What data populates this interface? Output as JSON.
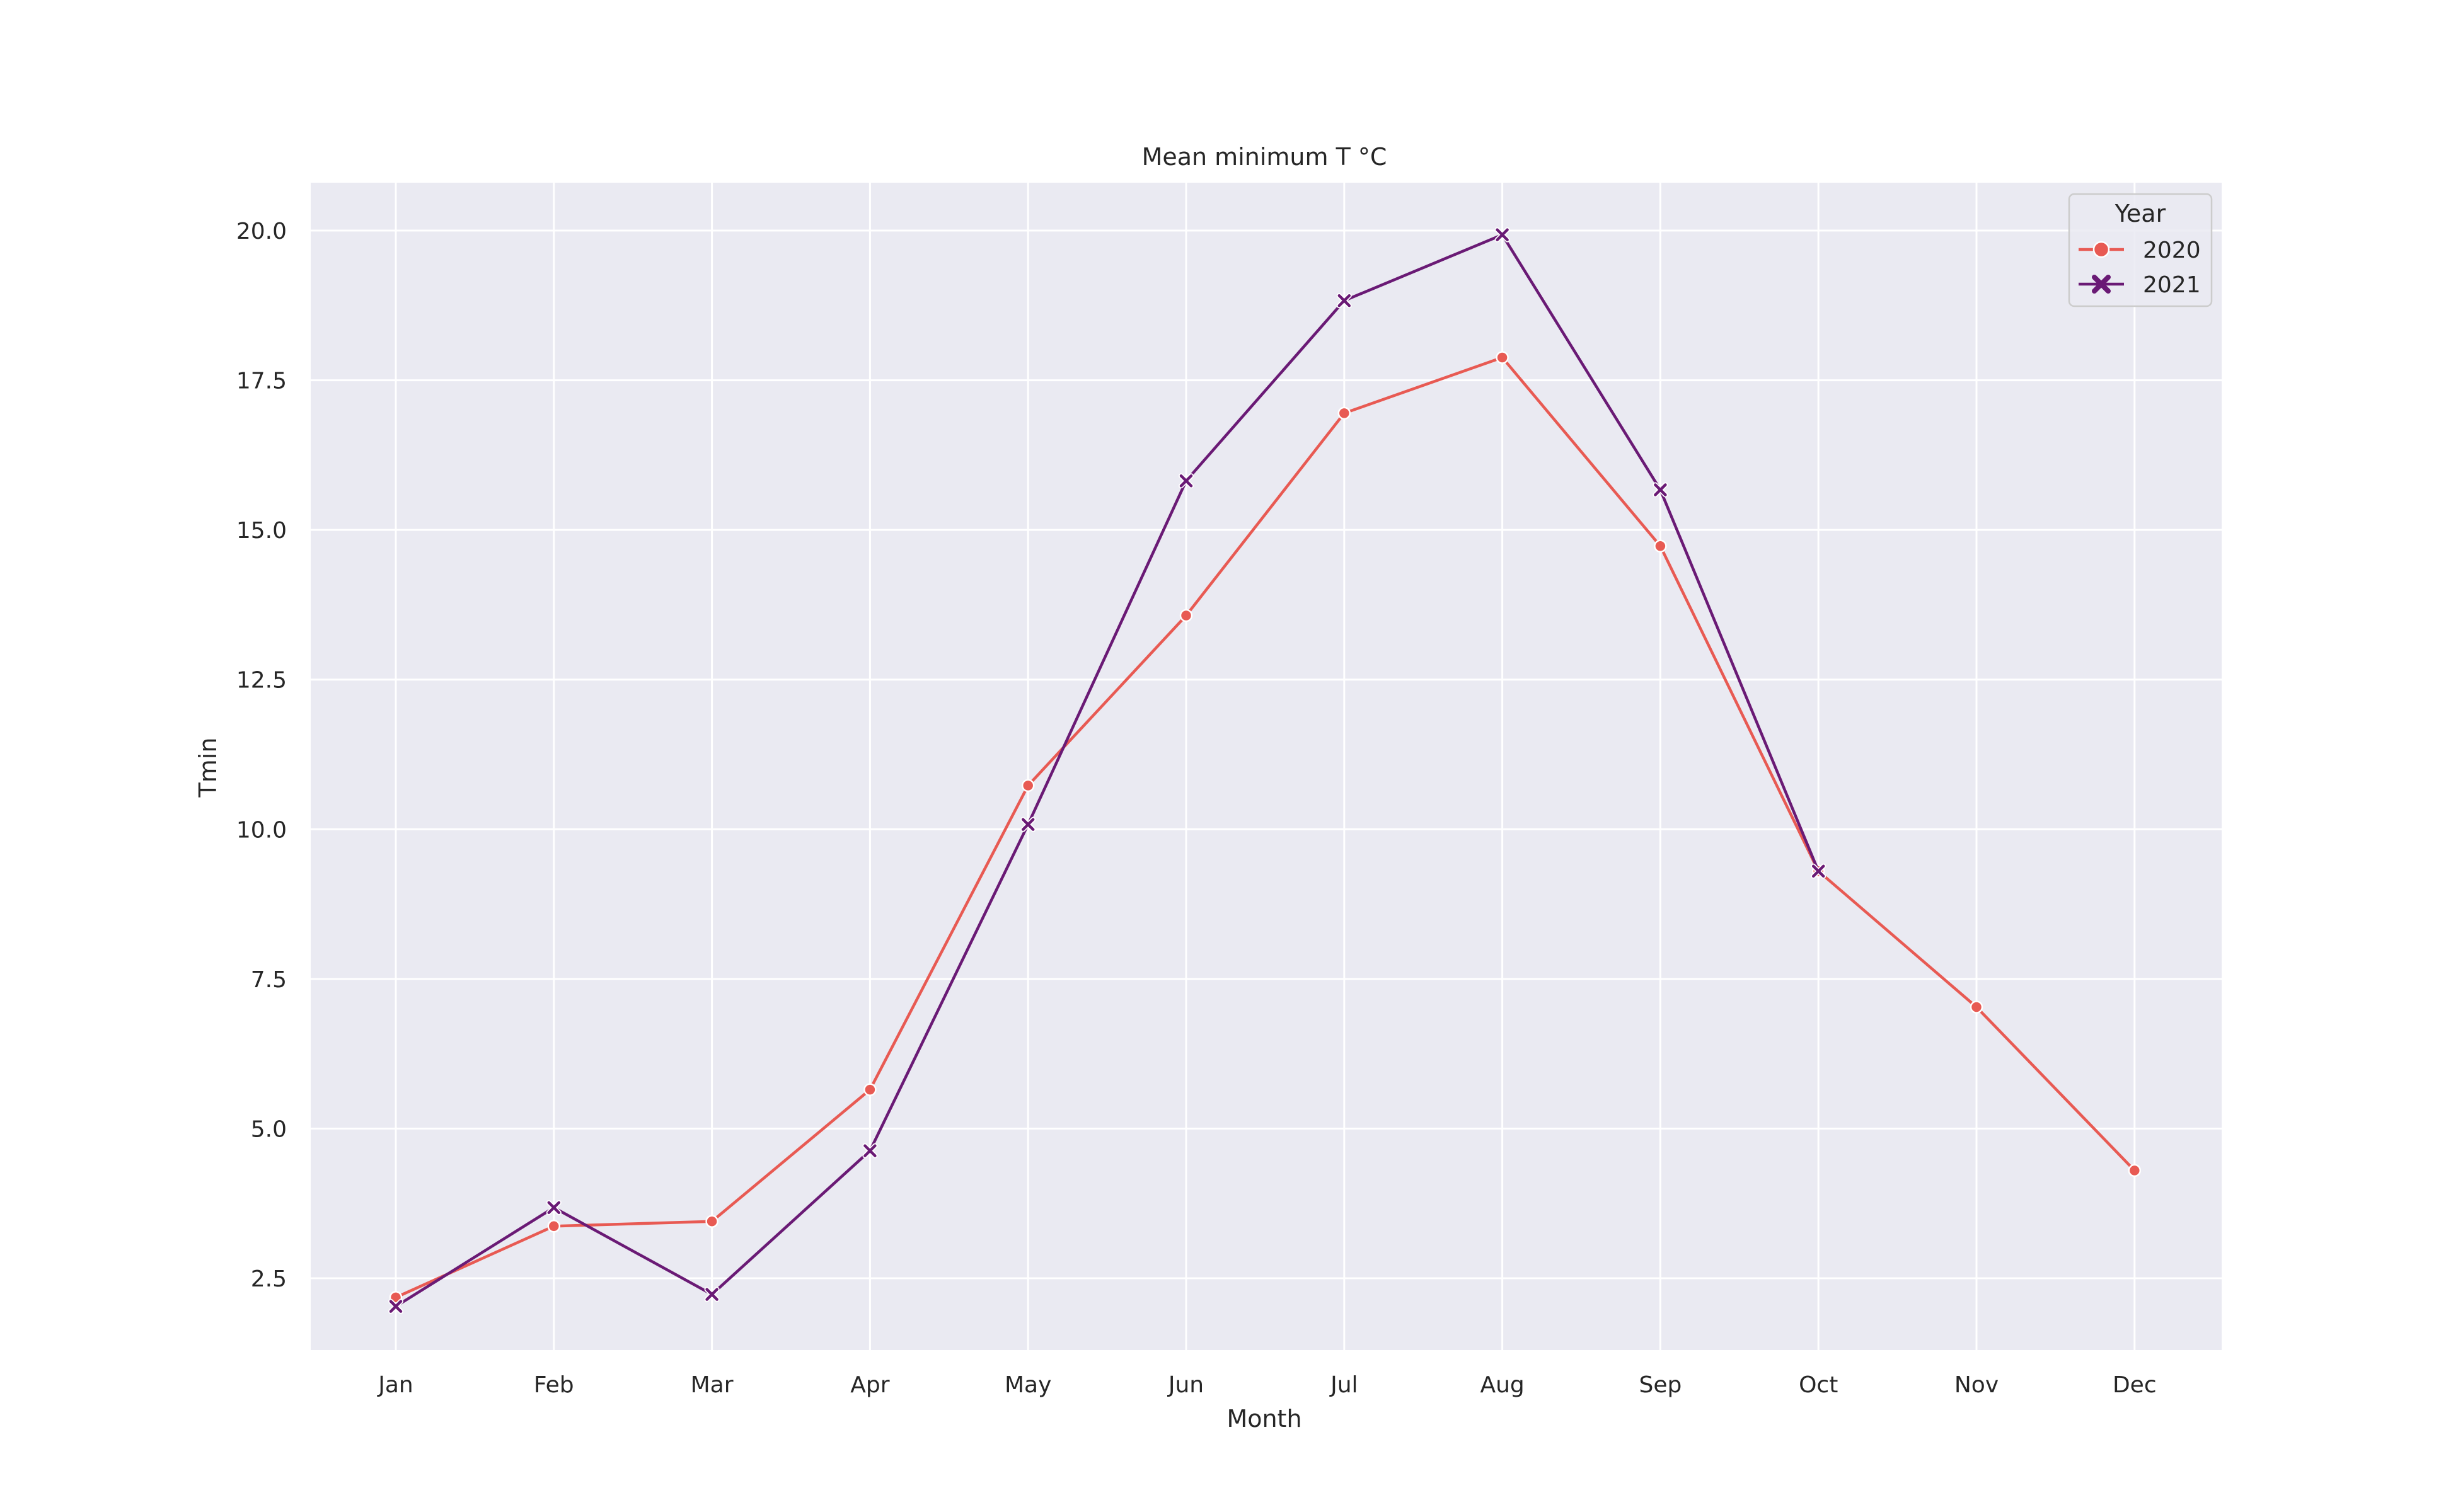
{
  "chart_data": {
    "type": "line",
    "title": "Mean minimum T °C",
    "xlabel": "Month",
    "ylabel": "Tmin",
    "categories": [
      "Jan",
      "Feb",
      "Mar",
      "Apr",
      "May",
      "Jun",
      "Jul",
      "Aug",
      "Sep",
      "Oct",
      "Nov",
      "Dec"
    ],
    "yticks": [
      "2.5",
      "5.0",
      "7.5",
      "10.0",
      "12.5",
      "15.0",
      "17.5",
      "20.0"
    ],
    "ylim": [
      1.3,
      20.8
    ],
    "grid": true,
    "legend": {
      "title": "Year",
      "placement": "top-right"
    },
    "series": [
      {
        "name": "2020",
        "color": "#e85a53",
        "marker": "circle",
        "values": [
          2.18,
          3.37,
          3.45,
          5.65,
          10.73,
          13.57,
          16.95,
          17.88,
          14.73,
          9.3,
          7.03,
          4.3
        ]
      },
      {
        "name": "2021",
        "color": "#6a1a75",
        "marker": "x",
        "values": [
          2.03,
          3.68,
          2.23,
          4.63,
          10.08,
          15.82,
          18.83,
          19.93,
          15.67,
          9.3,
          null,
          null
        ]
      }
    ]
  }
}
